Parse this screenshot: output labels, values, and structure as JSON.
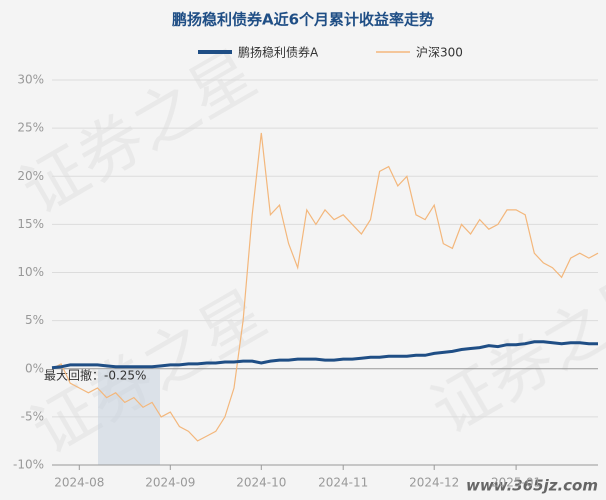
{
  "chart_data": {
    "type": "line",
    "title": "鹏扬稳利债券A近6个月累计收益率走势",
    "annotation": "最大回撤：-0.25%",
    "watermark": "证券之星",
    "site": "www.365jz.com",
    "categories": [
      null,
      null,
      null,
      "2024-08",
      null,
      null,
      null,
      null,
      null,
      null,
      null,
      null,
      null,
      "2024-09",
      null,
      null,
      null,
      null,
      null,
      null,
      null,
      null,
      null,
      "2024-10",
      null,
      null,
      null,
      null,
      null,
      null,
      null,
      null,
      "2024-11",
      null,
      null,
      null,
      null,
      null,
      null,
      null,
      null,
      null,
      "2024-12",
      null,
      null,
      null,
      null,
      null,
      null,
      null,
      null,
      "2025-01",
      null,
      null,
      null,
      null,
      null,
      null,
      null,
      null,
      null
    ],
    "series": [
      {
        "name": "鹏扬稳利债券A",
        "color": "#1f4e85",
        "values": [
          0.1,
          0.2,
          0.4,
          0.4,
          0.4,
          0.4,
          0.3,
          0.2,
          0.2,
          0.2,
          0.2,
          0.2,
          0.3,
          0.4,
          0.4,
          0.5,
          0.5,
          0.6,
          0.6,
          0.7,
          0.7,
          0.8,
          0.8,
          0.6,
          0.8,
          0.9,
          0.9,
          1.0,
          1.0,
          1.0,
          0.9,
          0.9,
          1.0,
          1.0,
          1.1,
          1.2,
          1.2,
          1.3,
          1.3,
          1.3,
          1.4,
          1.4,
          1.6,
          1.7,
          1.8,
          2.0,
          2.1,
          2.2,
          2.4,
          2.3,
          2.5,
          2.5,
          2.6,
          2.8,
          2.8,
          2.7,
          2.6,
          2.7,
          2.7,
          2.6,
          2.6
        ]
      },
      {
        "name": "沪深300",
        "color": "#f3b77c",
        "values": [
          0,
          0.5,
          -1.5,
          -2,
          -2.5,
          -2,
          -3,
          -2.5,
          -3.5,
          -3,
          -4,
          -3.5,
          -5,
          -4.5,
          -6,
          -6.5,
          -7.5,
          -7,
          -6.5,
          -5,
          -2,
          5,
          16,
          24.5,
          16,
          17,
          13,
          10.5,
          16.5,
          15,
          16.5,
          15.5,
          16,
          15,
          14,
          15.5,
          20.5,
          21,
          19,
          20,
          16,
          15.5,
          17,
          13,
          12.5,
          15,
          14,
          15.5,
          14.5,
          15,
          16.5,
          16.5,
          16,
          12,
          11,
          10.5,
          9.5,
          11.5,
          12,
          11.5,
          12
        ]
      }
    ],
    "ylim": [
      -10,
      30
    ],
    "yticks": [
      {
        "value": -10,
        "label": "-10%"
      },
      {
        "value": -5,
        "label": "-5%"
      },
      {
        "value": 0,
        "label": "0%"
      },
      {
        "value": 5,
        "label": "5%"
      },
      {
        "value": 10,
        "label": "10%"
      },
      {
        "value": 15,
        "label": "15%"
      },
      {
        "value": 20,
        "label": "20%"
      },
      {
        "value": 25,
        "label": "25%"
      },
      {
        "value": 30,
        "label": "30%"
      }
    ],
    "grid": true,
    "legend": "top"
  }
}
